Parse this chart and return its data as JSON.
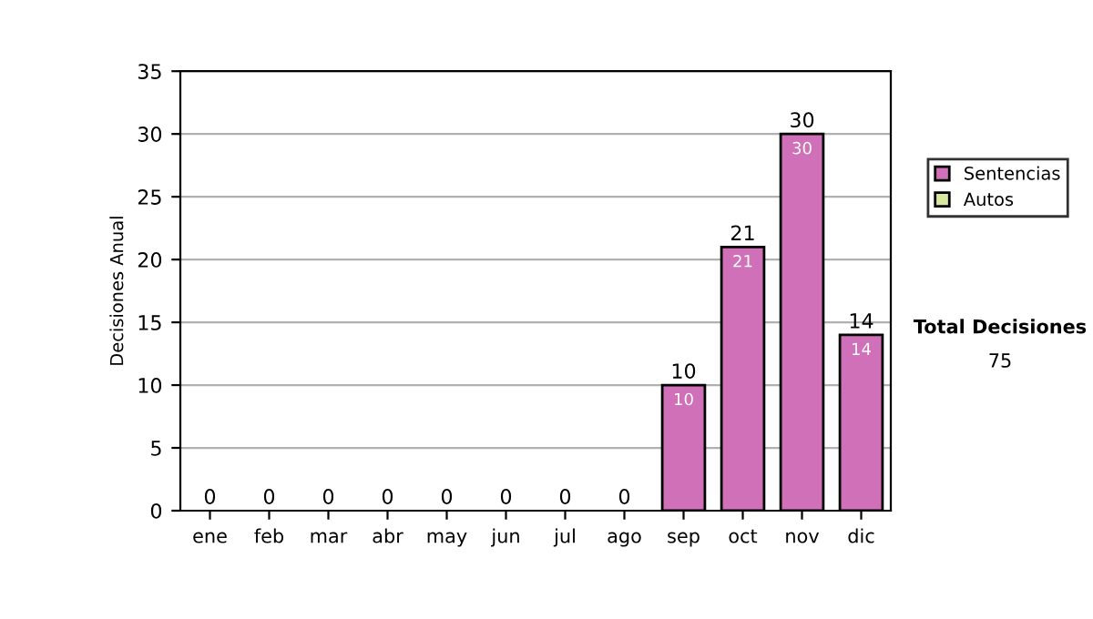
{
  "chart_data": {
    "type": "bar",
    "ylabel": "Decisiones Anual",
    "stacked": true,
    "categories": [
      "ene",
      "feb",
      "mar",
      "abr",
      "may",
      "jun",
      "jul",
      "ago",
      "sep",
      "oct",
      "nov",
      "dic"
    ],
    "series": [
      {
        "name": "Sentencias",
        "color": "#d070b8",
        "values": [
          0,
          0,
          0,
          0,
          0,
          0,
          0,
          0,
          10,
          21,
          30,
          14
        ],
        "value_labels": [
          null,
          null,
          null,
          null,
          null,
          null,
          null,
          null,
          "10",
          "21",
          "30",
          "14"
        ]
      },
      {
        "name": "Autos",
        "color": "#d8e8a0",
        "values": [
          0,
          0,
          0,
          0,
          0,
          0,
          0,
          0,
          0,
          0,
          0,
          0
        ]
      }
    ],
    "totals": [
      "0",
      "0",
      "0",
      "0",
      "0",
      "0",
      "0",
      "0",
      "10",
      "21",
      "30",
      "14"
    ],
    "ylim": [
      0,
      35
    ],
    "yticks": [
      0,
      5,
      10,
      15,
      20,
      25,
      30,
      35
    ],
    "grid": "y",
    "legend": "right",
    "annotations": [
      "Total Decisiones",
      "75"
    ]
  }
}
